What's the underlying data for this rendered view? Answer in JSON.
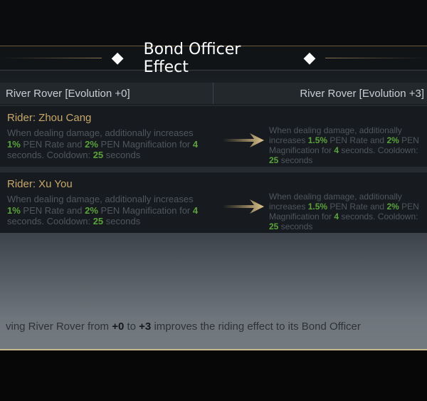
{
  "title": "Bond Officer Effect",
  "columns": {
    "left": "River Rover [Evolution +0]",
    "right": "River Rover [Evolution +3]"
  },
  "effects": [
    {
      "rider": "Rider: Zhou Cang",
      "left": {
        "l1": "When dealing damage, additionally increases",
        "rate": "1%",
        "t1": " PEN Rate and ",
        "mag": "2%",
        "t2": " PEN Magnification for ",
        "dur": "4",
        "l3a": "seconds. Cooldown: ",
        "cd": "25",
        "l3b": " seconds"
      },
      "right": {
        "l1": "When dealing damage, additionally increases",
        "rate": "1.5%",
        "t1": " PEN Rate and ",
        "mag": "2%",
        "t2": " PEN Magnification for",
        "dur": "4",
        "l3a": " seconds. Cooldown: ",
        "cd": "25",
        "l3b": " seconds"
      }
    },
    {
      "rider": "Rider: Xu You",
      "left": {
        "l1": "When dealing damage, additionally increases",
        "rate": "1%",
        "t1": " PEN Rate and ",
        "mag": "2%",
        "t2": " PEN Magnification for ",
        "dur": "4",
        "l3a": "seconds. Cooldown: ",
        "cd": "25",
        "l3b": " seconds"
      },
      "right": {
        "l1": "When dealing damage, additionally increases",
        "rate": "1.5%",
        "t1": " PEN Rate and ",
        "mag": "2%",
        "t2": " PEN Magnification for",
        "dur": "4",
        "l3a": " seconds. Cooldown: ",
        "cd": "25",
        "l3b": " seconds"
      }
    }
  ],
  "footer": {
    "a": "ving River Rover from ",
    "from": "+0",
    "b": " to ",
    "to": "+3",
    "c": " improves the riding effect to its Bond Officer"
  },
  "colors": {
    "accent_gold": "#c7a86a",
    "value_green": "#5aa33c"
  }
}
